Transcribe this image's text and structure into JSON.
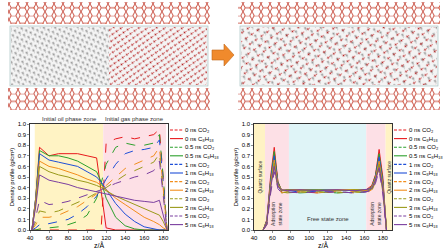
{
  "chart_data": [
    {
      "type": "line",
      "xlabel": "z/Å",
      "ylabel": "Density profile (g/cm³)",
      "x": [
        42,
        46,
        50,
        60,
        70,
        80,
        90,
        100,
        110,
        115,
        120,
        130,
        140,
        150,
        160,
        170,
        176,
        180,
        184
      ],
      "xlim": [
        40,
        185
      ],
      "xticks": [
        40,
        60,
        80,
        100,
        120,
        140,
        160,
        180
      ],
      "ylim": [
        0,
        1
      ],
      "yticks": [
        {
          "value": 0,
          "label": "0.0"
        },
        {
          "value": 0.1,
          "label": "0.1"
        },
        {
          "value": 0.2,
          "label": "0.2"
        },
        {
          "value": 0.3,
          "label": "0.3"
        },
        {
          "value": 0.4,
          "label": "0.4"
        },
        {
          "value": 0.5,
          "label": "0.5"
        },
        {
          "value": 0.6,
          "label": "0.6"
        },
        {
          "value": 0.7,
          "label": "0.7"
        },
        {
          "value": 0.8,
          "label": "0.8"
        },
        {
          "value": 0.9,
          "label": "0.9"
        },
        {
          "value": 1,
          "label": "1.0"
        }
      ],
      "regions": [
        {
          "label": "Initial oil phase zone",
          "x0": 45,
          "x1": 117,
          "color": "#fff3c4"
        },
        {
          "label": "Initial gas phase zone",
          "x0": 117,
          "x1": 183,
          "color": "#fde0e6"
        }
      ],
      "series": [
        {
          "name": "0 ns CO₂",
          "color": "#e8191c",
          "line_style": "dash",
          "values": [
            0,
            0,
            0,
            0,
            0,
            0,
            0,
            0,
            0,
            0.05,
            0.82,
            0.86,
            0.88,
            0.86,
            0.88,
            0.9,
            0.95,
            0.5,
            0
          ]
        },
        {
          "name": "0 ns C₈H₁₈",
          "color": "#e8191c",
          "line_style": "solid",
          "values": [
            0,
            0.3,
            0.78,
            0.7,
            0.72,
            0.72,
            0.72,
            0.7,
            0.68,
            0.35,
            0.02,
            0,
            0,
            0,
            0,
            0,
            0,
            0,
            0
          ]
        },
        {
          "name": "0.5 ns CO₂",
          "color": "#2ca02c",
          "line_style": "dash",
          "values": [
            0,
            0,
            0.01,
            0.02,
            0.03,
            0.05,
            0.08,
            0.14,
            0.3,
            0.45,
            0.62,
            0.78,
            0.82,
            0.8,
            0.8,
            0.82,
            0.9,
            0.5,
            0
          ]
        },
        {
          "name": "0.5 ns C₈H₁₈",
          "color": "#2ca02c",
          "line_style": "solid",
          "values": [
            0,
            0.3,
            0.75,
            0.7,
            0.7,
            0.68,
            0.65,
            0.6,
            0.55,
            0.45,
            0.3,
            0.12,
            0.04,
            0.01,
            0,
            0,
            0,
            0,
            0
          ]
        },
        {
          "name": "1 ns CO₂",
          "color": "#1f4fd8",
          "line_style": "dash",
          "values": [
            0,
            0.02,
            0.05,
            0.06,
            0.08,
            0.1,
            0.15,
            0.22,
            0.32,
            0.4,
            0.48,
            0.62,
            0.72,
            0.75,
            0.76,
            0.78,
            0.85,
            0.45,
            0
          ]
        },
        {
          "name": "1 ns C₈H₁₈",
          "color": "#1f4fd8",
          "line_style": "solid",
          "values": [
            0,
            0.3,
            0.72,
            0.66,
            0.64,
            0.62,
            0.6,
            0.55,
            0.5,
            0.45,
            0.38,
            0.25,
            0.15,
            0.08,
            0.03,
            0.01,
            0,
            0,
            0
          ]
        },
        {
          "name": "2 ns CO₂",
          "color": "#f28e1c",
          "line_style": "dash",
          "values": [
            0,
            0.05,
            0.12,
            0.12,
            0.14,
            0.18,
            0.22,
            0.28,
            0.34,
            0.38,
            0.42,
            0.5,
            0.58,
            0.62,
            0.66,
            0.7,
            0.78,
            0.4,
            0
          ]
        },
        {
          "name": "2 ns C₈H₁₈",
          "color": "#f28e1c",
          "line_style": "solid",
          "values": [
            0,
            0.28,
            0.65,
            0.6,
            0.58,
            0.55,
            0.52,
            0.48,
            0.45,
            0.42,
            0.38,
            0.3,
            0.24,
            0.18,
            0.12,
            0.08,
            0.05,
            0.02,
            0
          ]
        },
        {
          "name": "3 ns CO₂",
          "color": "#9a9a1a",
          "line_style": "dash",
          "values": [
            0,
            0.08,
            0.18,
            0.16,
            0.18,
            0.22,
            0.26,
            0.3,
            0.35,
            0.38,
            0.4,
            0.46,
            0.52,
            0.56,
            0.6,
            0.64,
            0.72,
            0.38,
            0
          ]
        },
        {
          "name": "3 ns C₈H₁₈",
          "color": "#9a9a1a",
          "line_style": "solid",
          "values": [
            0,
            0.25,
            0.6,
            0.55,
            0.52,
            0.5,
            0.47,
            0.45,
            0.42,
            0.4,
            0.37,
            0.32,
            0.28,
            0.24,
            0.2,
            0.16,
            0.14,
            0.08,
            0
          ]
        },
        {
          "name": "5 ns CO₂",
          "color": "#7b3fa0",
          "line_style": "dash",
          "values": [
            0,
            0.12,
            0.28,
            0.24,
            0.25,
            0.27,
            0.3,
            0.33,
            0.36,
            0.38,
            0.4,
            0.44,
            0.47,
            0.5,
            0.52,
            0.56,
            0.65,
            0.35,
            0
          ]
        },
        {
          "name": "5 ns C₈H₁₈",
          "color": "#7b3fa0",
          "line_style": "solid",
          "values": [
            0,
            0.22,
            0.52,
            0.47,
            0.45,
            0.43,
            0.4,
            0.38,
            0.36,
            0.35,
            0.34,
            0.32,
            0.3,
            0.28,
            0.27,
            0.26,
            0.28,
            0.15,
            0
          ]
        }
      ]
    },
    {
      "type": "line",
      "xlabel": "z/Å",
      "ylabel": "Density profile (g/cm³)",
      "x": [
        50,
        54,
        58,
        62,
        66,
        70,
        76,
        90,
        110,
        130,
        150,
        162,
        168,
        172,
        176,
        180,
        184
      ],
      "xlim": [
        40,
        190
      ],
      "xticks": [
        40,
        60,
        80,
        100,
        120,
        140,
        160,
        180
      ],
      "ylim": [
        0,
        1
      ],
      "yticks": [
        {
          "value": 0,
          "label": "0.0"
        },
        {
          "value": 0.1,
          "label": "0.1"
        },
        {
          "value": 0.2,
          "label": "0.2"
        },
        {
          "value": 0.3,
          "label": "0.3"
        },
        {
          "value": 0.4,
          "label": "0.4"
        },
        {
          "value": 0.5,
          "label": "0.5"
        },
        {
          "value": 0.6,
          "label": "0.6"
        },
        {
          "value": 0.7,
          "label": "0.7"
        },
        {
          "value": 0.8,
          "label": "0.8"
        },
        {
          "value": 0.9,
          "label": "0.9"
        },
        {
          "value": 1,
          "label": "1.0"
        }
      ],
      "regions": [
        {
          "label": "Quartz surface",
          "x0": 40,
          "x1": 52,
          "color": "#fff3c4"
        },
        {
          "label": "Adsorption state zone",
          "x0": 52,
          "x1": 78,
          "color": "#fde0e6"
        },
        {
          "label": "Free state zone",
          "x0": 78,
          "x1": 162,
          "color": "#dff4f7"
        },
        {
          "label": "Adsorption state zone",
          "x0": 162,
          "x1": 183,
          "color": "#fde0e6"
        },
        {
          "label": "Quartz surface",
          "x0": 183,
          "x1": 190,
          "color": "#fff3c4"
        }
      ],
      "series": [
        {
          "name": "0 ns CO₂",
          "color": "#e8191c",
          "line_style": "dash",
          "values": [
            0,
            0.08,
            0.45,
            0.72,
            0.45,
            0.36,
            0.35,
            0.36,
            0.35,
            0.36,
            0.35,
            0.36,
            0.4,
            0.5,
            0.72,
            0.45,
            0
          ]
        },
        {
          "name": "0 ns C₈H₁₈",
          "color": "#e8191c",
          "line_style": "solid",
          "values": [
            0,
            0.1,
            0.5,
            0.78,
            0.46,
            0.37,
            0.38,
            0.38,
            0.37,
            0.38,
            0.37,
            0.38,
            0.42,
            0.52,
            0.76,
            0.5,
            0
          ]
        },
        {
          "name": "0.5 ns CO₂",
          "color": "#2ca02c",
          "line_style": "dash",
          "values": [
            0,
            0.07,
            0.42,
            0.68,
            0.43,
            0.35,
            0.36,
            0.35,
            0.36,
            0.35,
            0.36,
            0.35,
            0.39,
            0.48,
            0.68,
            0.42,
            0
          ]
        },
        {
          "name": "0.5 ns C₈H₁₈",
          "color": "#2ca02c",
          "line_style": "solid",
          "values": [
            0,
            0.09,
            0.47,
            0.74,
            0.45,
            0.38,
            0.37,
            0.38,
            0.38,
            0.37,
            0.38,
            0.37,
            0.41,
            0.51,
            0.72,
            0.47,
            0
          ]
        },
        {
          "name": "1 ns CO₂",
          "color": "#1f4fd8",
          "line_style": "dash",
          "values": [
            0,
            0.06,
            0.4,
            0.64,
            0.42,
            0.36,
            0.35,
            0.37,
            0.36,
            0.36,
            0.35,
            0.36,
            0.38,
            0.47,
            0.65,
            0.4,
            0
          ]
        },
        {
          "name": "1 ns C₈H₁₈",
          "color": "#1f4fd8",
          "line_style": "solid",
          "values": [
            0,
            0.09,
            0.45,
            0.7,
            0.44,
            0.37,
            0.38,
            0.37,
            0.38,
            0.38,
            0.37,
            0.38,
            0.4,
            0.5,
            0.69,
            0.45,
            0
          ]
        },
        {
          "name": "2 ns CO₂",
          "color": "#f28e1c",
          "line_style": "dash",
          "values": [
            0,
            0.06,
            0.38,
            0.6,
            0.41,
            0.35,
            0.36,
            0.36,
            0.35,
            0.37,
            0.36,
            0.35,
            0.38,
            0.46,
            0.6,
            0.38,
            0
          ]
        },
        {
          "name": "2 ns C₈H₁₈",
          "color": "#f28e1c",
          "line_style": "solid",
          "values": [
            0,
            0.08,
            0.43,
            0.66,
            0.43,
            0.38,
            0.37,
            0.38,
            0.37,
            0.38,
            0.38,
            0.37,
            0.4,
            0.49,
            0.65,
            0.43,
            0
          ]
        },
        {
          "name": "3 ns CO₂",
          "color": "#9a9a1a",
          "line_style": "dash",
          "values": [
            0,
            0.05,
            0.36,
            0.58,
            0.4,
            0.36,
            0.35,
            0.36,
            0.36,
            0.35,
            0.36,
            0.36,
            0.37,
            0.45,
            0.58,
            0.36,
            0
          ]
        },
        {
          "name": "3 ns C₈H₁₈",
          "color": "#9a9a1a",
          "line_style": "solid",
          "values": [
            0,
            0.08,
            0.41,
            0.63,
            0.42,
            0.37,
            0.38,
            0.37,
            0.38,
            0.37,
            0.38,
            0.38,
            0.39,
            0.48,
            0.62,
            0.41,
            0
          ]
        },
        {
          "name": "5 ns CO₂",
          "color": "#7b3fa0",
          "line_style": "dash",
          "values": [
            0,
            0.05,
            0.34,
            0.55,
            0.39,
            0.35,
            0.36,
            0.35,
            0.36,
            0.36,
            0.35,
            0.36,
            0.37,
            0.44,
            0.56,
            0.34,
            0
          ]
        },
        {
          "name": "5 ns C₈H₁₈",
          "color": "#7b3fa0",
          "line_style": "solid",
          "values": [
            0,
            0.07,
            0.39,
            0.6,
            0.41,
            0.38,
            0.37,
            0.38,
            0.37,
            0.38,
            0.37,
            0.38,
            0.39,
            0.47,
            0.59,
            0.39,
            0
          ]
        }
      ]
    }
  ]
}
